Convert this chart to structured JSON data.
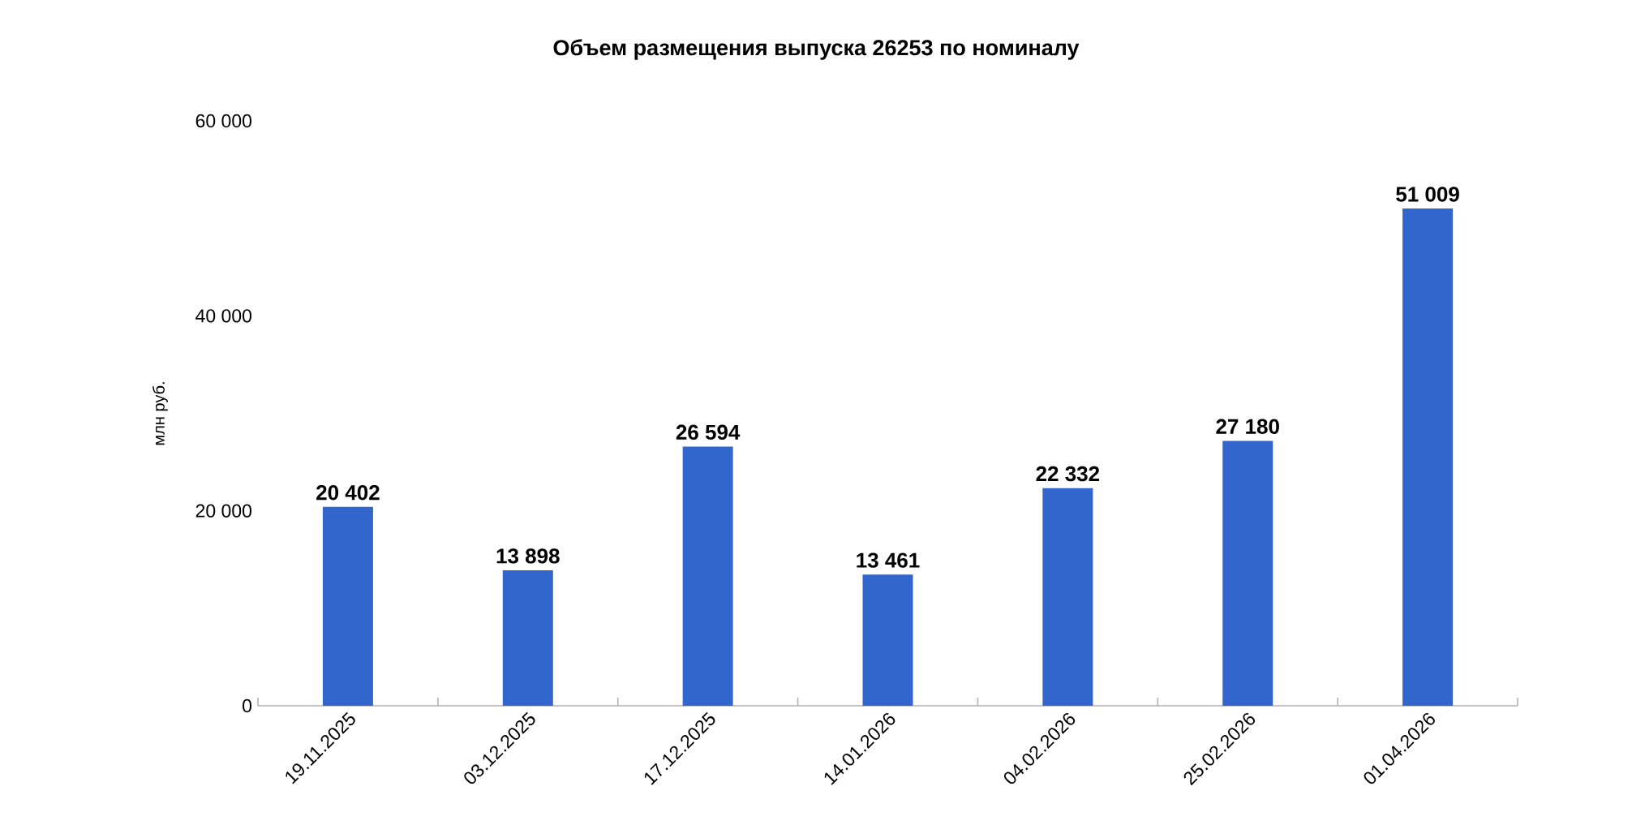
{
  "chart_data": {
    "type": "bar",
    "title": "Объем размещения  выпуска 26253 по номиналу",
    "ylabel": "млн руб.",
    "categories": [
      "19.11.2025",
      "03.12.2025",
      "17.12.2025",
      "14.01.2026",
      "04.02.2026",
      "25.02.2026",
      "01.04.2026"
    ],
    "values": [
      20402,
      13898,
      26594,
      13461,
      22332,
      27180,
      51009
    ],
    "value_labels": [
      "20 402",
      "13 898",
      "26 594",
      "13 461",
      "22 332",
      "27 180",
      "51 009"
    ],
    "color": "#3366cc",
    "ylim": [
      0,
      60000
    ],
    "yticks": [
      {
        "value": 0,
        "label": "0"
      },
      {
        "value": 20000,
        "label": "20 000"
      },
      {
        "value": 40000,
        "label": "40 000"
      },
      {
        "value": 60000,
        "label": "60 000"
      }
    ],
    "grid": false
  }
}
